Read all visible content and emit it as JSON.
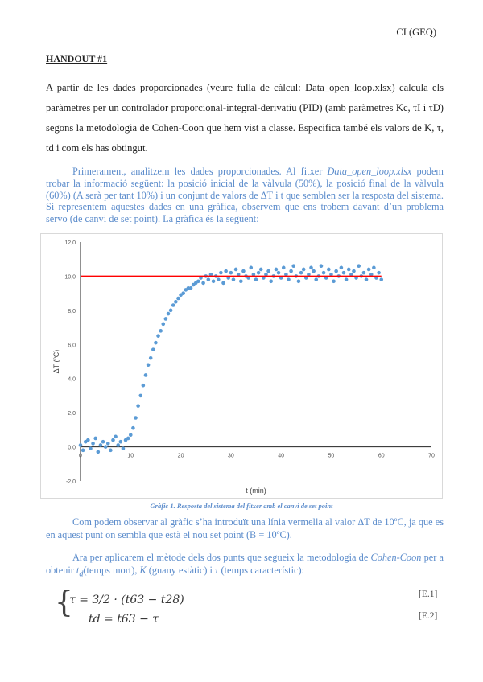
{
  "header": {
    "course": "CI (GEQ)"
  },
  "title": "HANDOUT #1",
  "statement": "A partir de les dades proporcionades (veure fulla de càlcul: Data_open_loop.xlsx) calcula els paràmetres per un controlador proporcional-integral-derivatiu (PID) (amb paràmetres Kc, τI i τD) segons la metodologia de Cohen-Coon que hem vist a classe. Especifica també els valors de K, τ, td i com els has obtingut.",
  "para2": {
    "a": "Primerament, analitzem les dades proporcionades. Al fitxer ",
    "file": "Data_open_loop.xlsx",
    "b": " podem trobar la informació següent: la posició inicial de la vàlvula (50%), la posició final de la vàlvula (60%) (A serà per tant 10%) i un conjunt de valors de ΔT i t que semblen ser la resposta del sistema. Si representem aquestes dades en una gràfica, observem que ens trobem davant d’un problema servo (de canvi de set point). La gràfica és la següent:"
  },
  "caption": "Gràfic 1. Resposta del sistema del fitxer amb el canvi de set point",
  "para3": "Com podem observar al gràfic s’ha introduït una línia vermella al valor ΔT de 10ºC, ja que es en aquest punt on sembla que està el nou set point (B = 10ºC).",
  "para4": {
    "a": "Ara per aplicarem el mètode dels dos punts que segueix la metodologia de ",
    "method": "Cohen-Coon",
    "b": " per a obtenir ",
    "td": "t",
    "td_sub": "d",
    "c": "(temps mort), ",
    "k": "K",
    "d": " (guany estàtic) i ",
    "tau": "τ",
    "e": " (temps característic):"
  },
  "equations": [
    {
      "text": "τ = 3/2 · (t63 − t28)",
      "label": "[E.1]"
    },
    {
      "text": "td = t63 − τ",
      "label": "[E.2]"
    }
  ],
  "chart_data": {
    "type": "scatter",
    "xlabel": "t (min)",
    "ylabel": "ΔT (ºC)",
    "xlim": [
      0,
      70
    ],
    "ylim": [
      -2,
      12
    ],
    "xticks": [
      "0",
      "10",
      "20",
      "30",
      "40",
      "50",
      "60",
      "70"
    ],
    "yticks": [
      "-2,0",
      "0,0",
      "2,0",
      "4,0",
      "6,0",
      "8,0",
      "10,0",
      "12,0"
    ],
    "grid": false,
    "legend": "none",
    "colors": {
      "points": "#5b9bd5",
      "setpoint": "#ff0000"
    },
    "setpoint_line": {
      "y": 10,
      "x": [
        0,
        60
      ]
    },
    "series": [
      {
        "x": [
          0,
          0.5,
          1,
          1.5,
          2,
          2.5,
          3,
          3.5,
          4,
          4.5,
          5,
          5.5,
          6,
          6.5,
          7,
          7.5,
          8,
          8.5,
          9,
          9.5,
          10,
          10.5,
          11,
          11.5,
          12,
          12.5,
          13,
          13.5,
          14,
          14.5,
          15,
          15.5,
          16,
          16.5,
          17,
          17.5,
          18,
          18.5,
          19,
          19.5,
          20,
          20.5,
          21,
          21.5,
          22,
          22.5,
          23,
          23.5,
          24,
          24.5,
          25,
          25.5,
          26,
          26.5,
          27,
          27.5,
          28,
          28.5,
          29,
          29.5,
          30,
          30.5,
          31,
          31.5,
          32,
          32.5,
          33,
          33.5,
          34,
          34.5,
          35,
          35.5,
          36,
          36.5,
          37,
          37.5,
          38,
          38.5,
          39,
          39.5,
          40,
          40.5,
          41,
          41.5,
          42,
          42.5,
          43,
          43.5,
          44,
          44.5,
          45,
          45.5,
          46,
          46.5,
          47,
          47.5,
          48,
          48.5,
          49,
          49.5,
          50,
          50.5,
          51,
          51.5,
          52,
          52.5,
          53,
          53.5,
          54,
          54.5,
          55,
          55.5,
          56,
          56.5,
          57,
          57.5,
          58,
          58.5,
          59,
          59.5,
          60
        ],
        "y": [
          0.1,
          -0.2,
          0.3,
          0.4,
          -0.1,
          0.2,
          0.5,
          -0.3,
          0.1,
          0.3,
          0.0,
          0.2,
          -0.2,
          0.4,
          0.6,
          0.1,
          0.3,
          -0.1,
          0.4,
          0.5,
          0.7,
          1.1,
          1.7,
          2.4,
          3.0,
          3.6,
          4.2,
          4.8,
          5.2,
          5.7,
          6.1,
          6.5,
          6.8,
          7.2,
          7.5,
          7.8,
          8.0,
          8.3,
          8.5,
          8.7,
          8.9,
          9.0,
          9.2,
          9.3,
          9.3,
          9.5,
          9.6,
          9.7,
          9.9,
          9.6,
          10.0,
          9.8,
          10.1,
          9.7,
          10.0,
          9.8,
          10.2,
          9.6,
          10.3,
          9.9,
          10.2,
          9.8,
          10.4,
          10.1,
          9.7,
          10.3,
          10.0,
          9.9,
          10.5,
          10.1,
          9.8,
          10.2,
          10.4,
          9.9,
          10.1,
          10.3,
          9.7,
          10.0,
          10.4,
          10.2,
          9.9,
          10.5,
          10.1,
          9.8,
          10.3,
          10.6,
          10.0,
          9.7,
          10.2,
          10.4,
          9.9,
          10.1,
          10.5,
          10.3,
          9.8,
          10.0,
          10.6,
          10.2,
          9.9,
          10.4,
          10.1,
          9.7,
          10.3,
          10.0,
          10.5,
          10.2,
          9.8,
          10.4,
          10.1,
          10.3,
          9.9,
          10.6,
          10.0,
          10.2,
          9.8,
          10.4,
          10.1,
          10.5,
          9.9,
          10.2,
          9.8
        ]
      }
    ]
  }
}
